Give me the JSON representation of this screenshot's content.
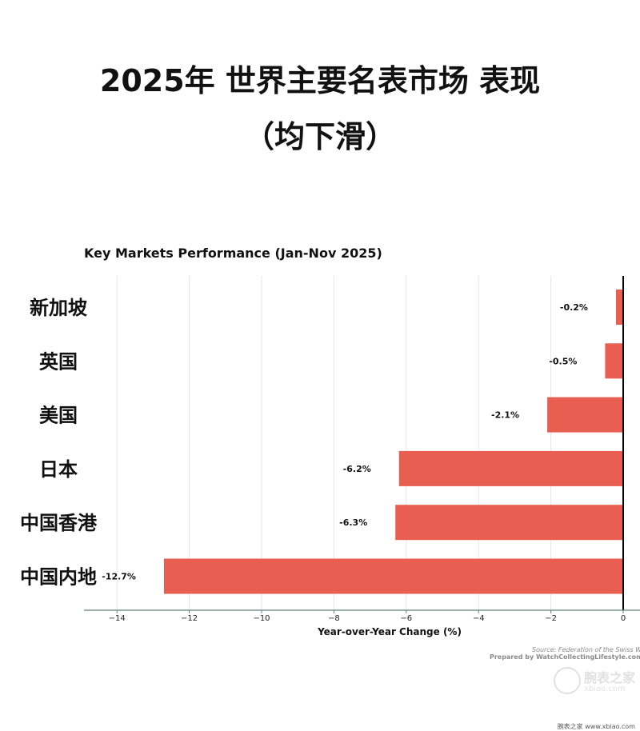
{
  "page": {
    "title_line1": "2025年 世界主要名表市场 表现",
    "title_line2": "（均下滑）",
    "source_line1": "Source: Federation of the Swiss Watch Industry",
    "source_line2": "Prepared by WatchCollectingLifestyle.com ©WatchCollectingLifestyle",
    "watermark_line1": "腕表之家",
    "watermark_line2": "xbiao.com",
    "footer_brand": "腕表之家 www.xbiao.com"
  },
  "chart_data": {
    "type": "bar",
    "orientation": "horizontal",
    "title": "Key Markets Performance (Jan-Nov 2025)",
    "xlabel": "Year-over-Year Change (%)",
    "ylabel": "",
    "categories": [
      "新加坡",
      "英国",
      "美国",
      "日本",
      "中国香港",
      "中国内地"
    ],
    "values": [
      -0.2,
      -0.5,
      -2.1,
      -6.2,
      -6.3,
      -12.7
    ],
    "value_labels": [
      "-0.2%",
      "-0.5%",
      "-2.1%",
      "-6.2%",
      "-6.3%",
      "-12.7%"
    ],
    "xlim": [
      -15,
      0.5
    ],
    "xticks": [
      -14,
      -12,
      -10,
      -8,
      -6,
      -4,
      -2,
      0
    ],
    "xtick_labels": [
      "−14",
      "−12",
      "−10",
      "−8",
      "−6",
      "−4",
      "−2",
      "0"
    ],
    "grid": "vertical",
    "bar_color": "#e85e50"
  }
}
